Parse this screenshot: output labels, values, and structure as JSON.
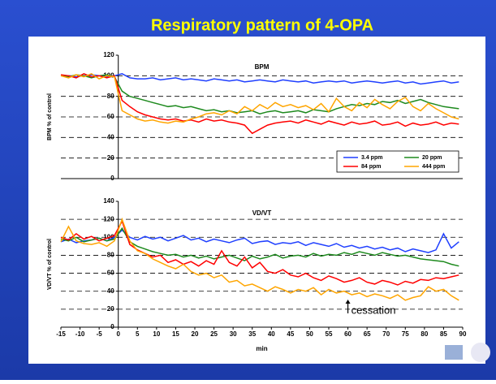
{
  "title": "Respiratory pattern of 4-OPA",
  "chart_data": [
    {
      "type": "line",
      "title": "BPM",
      "ylabel": "BPM % of control",
      "xlim": [
        -15,
        90
      ],
      "ylim": [
        0,
        120
      ],
      "yticks": [
        0,
        20,
        40,
        60,
        80,
        100,
        120
      ],
      "grid": true,
      "legend": "lower right",
      "x": [
        -15,
        -13,
        -11,
        -9,
        -7,
        -5,
        -3,
        -1,
        1,
        3,
        5,
        7,
        9,
        11,
        13,
        15,
        17,
        19,
        21,
        23,
        25,
        27,
        29,
        31,
        33,
        35,
        37,
        39,
        41,
        43,
        45,
        47,
        49,
        51,
        53,
        55,
        57,
        59,
        61,
        63,
        65,
        67,
        69,
        71,
        73,
        75,
        77,
        79,
        81,
        83,
        85,
        87,
        89
      ],
      "series": [
        {
          "name": "3.4 ppm",
          "color": "#1f3fff",
          "values": [
            100,
            100,
            99,
            100,
            101,
            100,
            99,
            100,
            102,
            98,
            97,
            97,
            98,
            96,
            97,
            98,
            96,
            97,
            96,
            95,
            97,
            96,
            95,
            96,
            94,
            95,
            96,
            95,
            94,
            96,
            95,
            94,
            95,
            93,
            94,
            95,
            94,
            95,
            93,
            94,
            95,
            94,
            93,
            94,
            95,
            93,
            94,
            92,
            93,
            94,
            95,
            93,
            94
          ]
        },
        {
          "name": "20 ppm",
          "color": "#1e8a1e",
          "values": [
            100,
            99,
            101,
            100,
            98,
            100,
            101,
            99,
            85,
            80,
            78,
            76,
            74,
            72,
            70,
            71,
            69,
            70,
            68,
            66,
            67,
            65,
            66,
            64,
            65,
            66,
            63,
            65,
            66,
            64,
            65,
            66,
            64,
            67,
            66,
            65,
            68,
            70,
            72,
            71,
            73,
            72,
            75,
            74,
            76,
            73,
            75,
            77,
            74,
            72,
            70,
            69,
            68
          ]
        },
        {
          "name": "84 ppm",
          "color": "#ff0000",
          "values": [
            101,
            100,
            98,
            102,
            99,
            100,
            98,
            100,
            76,
            70,
            65,
            62,
            60,
            58,
            57,
            58,
            56,
            57,
            55,
            58,
            56,
            57,
            55,
            54,
            52,
            44,
            48,
            52,
            54,
            55,
            56,
            54,
            57,
            55,
            53,
            56,
            54,
            52,
            55,
            53,
            54,
            56,
            52,
            53,
            55,
            51,
            54,
            52,
            53,
            55,
            52,
            54,
            53
          ]
        },
        {
          "name": "444 ppm",
          "color": "#ffa500",
          "values": [
            100,
            98,
            101,
            99,
            102,
            97,
            100,
            99,
            66,
            62,
            58,
            56,
            57,
            55,
            54,
            56,
            55,
            58,
            60,
            63,
            64,
            62,
            66,
            63,
            70,
            66,
            72,
            68,
            74,
            70,
            72,
            69,
            71,
            67,
            73,
            65,
            78,
            70,
            66,
            74,
            69,
            77,
            72,
            68,
            75,
            79,
            70,
            66,
            73,
            68,
            64,
            60,
            58
          ]
        }
      ]
    },
    {
      "type": "line",
      "title": "VD/VT",
      "ylabel": "VD/VT % of control",
      "xlabel": "min",
      "xlim": [
        -15,
        90
      ],
      "xticks": [
        -15,
        -10,
        -5,
        0,
        5,
        10,
        15,
        20,
        25,
        30,
        35,
        40,
        45,
        50,
        55,
        60,
        65,
        70,
        75,
        80,
        85,
        90
      ],
      "ylim": [
        0,
        140
      ],
      "yticks": [
        0,
        20,
        40,
        60,
        80,
        100,
        120,
        140
      ],
      "grid": true,
      "annotation": {
        "text": "cessation",
        "x": 60
      },
      "x": [
        -15,
        -13,
        -11,
        -9,
        -7,
        -5,
        -3,
        -1,
        1,
        3,
        5,
        7,
        9,
        11,
        13,
        15,
        17,
        19,
        21,
        23,
        25,
        27,
        29,
        31,
        33,
        35,
        37,
        39,
        41,
        43,
        45,
        47,
        49,
        51,
        53,
        55,
        57,
        59,
        61,
        63,
        65,
        67,
        69,
        71,
        73,
        75,
        77,
        79,
        81,
        83,
        85,
        87,
        89
      ],
      "series": [
        {
          "name": "3.4 ppm",
          "color": "#1f3fff",
          "values": [
            95,
            98,
            94,
            96,
            97,
            99,
            96,
            100,
            108,
            100,
            97,
            101,
            98,
            100,
            96,
            99,
            102,
            97,
            99,
            95,
            98,
            96,
            94,
            97,
            99,
            93,
            95,
            96,
            92,
            94,
            93,
            95,
            91,
            94,
            92,
            90,
            93,
            89,
            91,
            88,
            90,
            87,
            89,
            86,
            88,
            84,
            87,
            85,
            83,
            86,
            104,
            88,
            95
          ]
        },
        {
          "name": "20 ppm",
          "color": "#1e8a1e",
          "values": [
            98,
            96,
            100,
            95,
            97,
            99,
            96,
            98,
            110,
            95,
            90,
            87,
            84,
            82,
            80,
            81,
            78,
            80,
            77,
            79,
            76,
            78,
            80,
            77,
            74,
            79,
            76,
            78,
            81,
            77,
            79,
            80,
            78,
            82,
            79,
            81,
            80,
            83,
            81,
            84,
            82,
            80,
            83,
            81,
            79,
            80,
            78,
            76,
            75,
            74,
            73,
            70,
            68
          ]
        },
        {
          "name": "84 ppm",
          "color": "#ff0000",
          "values": [
            100,
            97,
            104,
            98,
            101,
            96,
            99,
            102,
            118,
            92,
            86,
            82,
            78,
            80,
            72,
            75,
            70,
            73,
            68,
            74,
            70,
            85,
            72,
            68,
            78,
            66,
            72,
            62,
            60,
            64,
            58,
            56,
            60,
            55,
            52,
            57,
            54,
            50,
            52,
            55,
            50,
            48,
            52,
            50,
            47,
            51,
            49,
            53,
            52,
            55,
            54,
            56,
            58
          ]
        },
        {
          "name": "444 ppm",
          "color": "#ffa500",
          "values": [
            95,
            112,
            96,
            93,
            92,
            94,
            90,
            96,
            120,
            96,
            85,
            82,
            76,
            72,
            68,
            65,
            70,
            62,
            58,
            60,
            55,
            58,
            50,
            52,
            46,
            48,
            44,
            40,
            45,
            42,
            38,
            42,
            40,
            44,
            36,
            42,
            38,
            40,
            36,
            38,
            34,
            37,
            35,
            32,
            36,
            30,
            33,
            35,
            45,
            40,
            42,
            35,
            30
          ]
        }
      ]
    }
  ]
}
